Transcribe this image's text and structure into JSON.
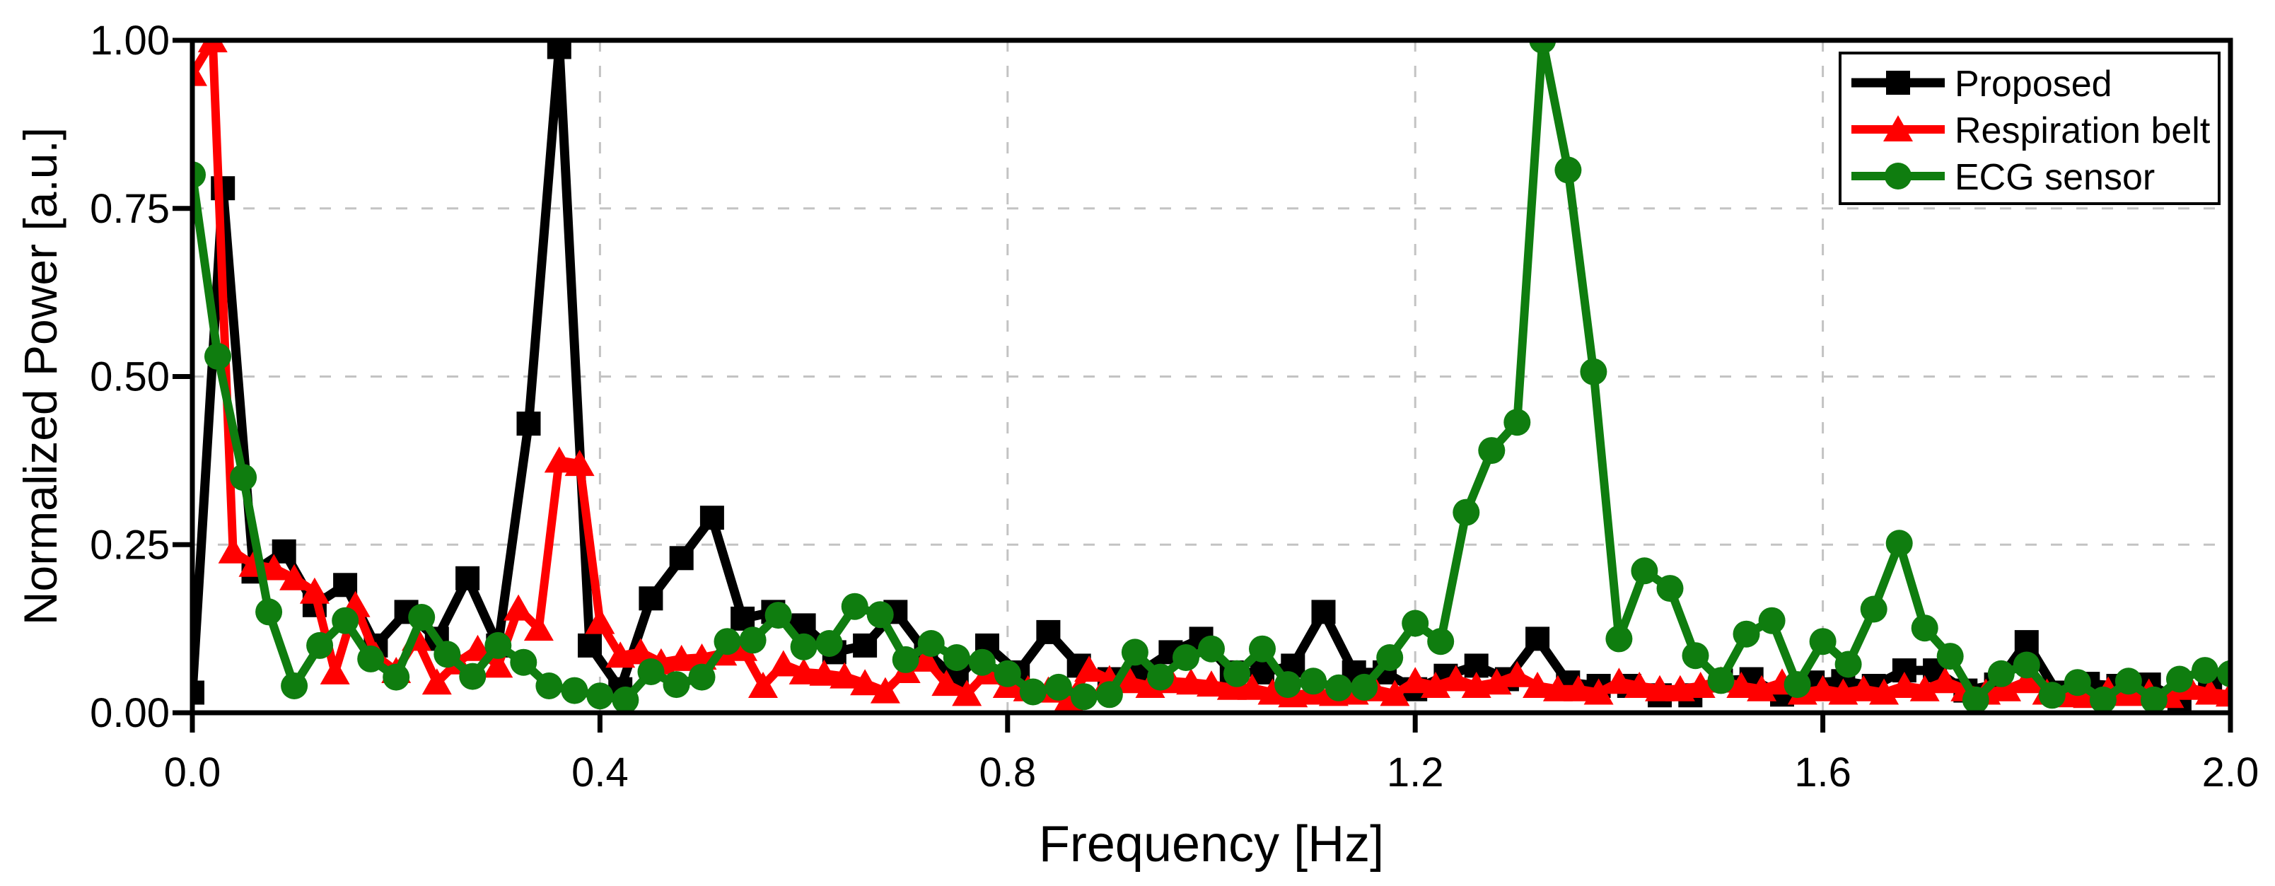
{
  "chart_data": {
    "type": "line",
    "title": "",
    "xlabel": "Frequency [Hz]",
    "ylabel": "Normalized Power [a.u.]",
    "xlim": [
      0.0,
      2.0
    ],
    "ylim": [
      0.0,
      1.0
    ],
    "x_ticks": [
      0.0,
      0.4,
      0.8,
      1.2,
      1.6,
      2.0
    ],
    "x_tick_labels": [
      "0.0",
      "0.4",
      "0.8",
      "1.2",
      "1.6",
      "2.0"
    ],
    "y_ticks": [
      0.0,
      0.25,
      0.5,
      0.75,
      1.0
    ],
    "y_tick_labels": [
      "0.00",
      "0.25",
      "0.50",
      "0.75",
      "1.00"
    ],
    "grid": true,
    "grid_color": "#c3c3c3",
    "axis_color": "#000000",
    "background_color": "#ffffff",
    "legend_position": "top-right",
    "legend": [
      "Proposed",
      "Respiration belt",
      "ECG sensor"
    ],
    "series": [
      {
        "name": "Proposed",
        "color": "#000000",
        "marker": "square",
        "x_start": 0.0,
        "x_step": 0.03,
        "values": [
          0.03,
          0.78,
          0.21,
          0.24,
          0.16,
          0.19,
          0.1,
          0.15,
          0.11,
          0.2,
          0.1,
          0.43,
          0.99,
          0.1,
          0.035,
          0.17,
          0.23,
          0.29,
          0.14,
          0.15,
          0.13,
          0.09,
          0.1,
          0.15,
          0.09,
          0.05,
          0.1,
          0.06,
          0.12,
          0.07,
          0.05,
          0.06,
          0.09,
          0.11,
          0.06,
          0.06,
          0.07,
          0.15,
          0.06,
          0.06,
          0.035,
          0.055,
          0.07,
          0.05,
          0.11,
          0.045,
          0.04,
          0.04,
          0.026,
          0.026,
          0.048,
          0.05,
          0.027,
          0.045,
          0.047,
          0.04,
          0.063,
          0.063,
          0.033,
          0.042,
          0.105,
          0.03,
          0.043,
          0.04,
          0.042,
          0.02,
          0.038
        ]
      },
      {
        "name": "Respiration belt",
        "color": "#ff0000",
        "marker": "triangle",
        "x_start": 0.0,
        "x_step": 0.02,
        "values": [
          0.95,
          1.0,
          0.24,
          0.22,
          0.215,
          0.2,
          0.18,
          0.06,
          0.16,
          0.085,
          0.062,
          0.11,
          0.045,
          0.075,
          0.095,
          0.07,
          0.155,
          0.125,
          0.375,
          0.37,
          0.135,
          0.085,
          0.09,
          0.075,
          0.08,
          0.082,
          0.088,
          0.095,
          0.04,
          0.072,
          0.06,
          0.058,
          0.054,
          0.044,
          0.032,
          0.062,
          0.079,
          0.043,
          0.028,
          0.06,
          0.04,
          0.035,
          0.033,
          0.02,
          0.064,
          0.05,
          0.047,
          0.04,
          0.047,
          0.045,
          0.042,
          0.037,
          0.037,
          0.03,
          0.026,
          0.03,
          0.028,
          0.03,
          0.035,
          0.028,
          0.047,
          0.04,
          0.05,
          0.04,
          0.045,
          0.056,
          0.04,
          0.035,
          0.035,
          0.03,
          0.046,
          0.04,
          0.035,
          0.035,
          0.04,
          0.048,
          0.04,
          0.035,
          0.045,
          0.03,
          0.035,
          0.03,
          0.035,
          0.03,
          0.04,
          0.035,
          0.047,
          0.035,
          0.03,
          0.035,
          0.047,
          0.03,
          0.026,
          0.025,
          0.033,
          0.028,
          0.03,
          0.025,
          0.037,
          0.03,
          0.027
        ]
      },
      {
        "name": "ECG sensor",
        "color": "#0f7d0f",
        "marker": "circle",
        "x_start": 0.0,
        "x_step": 0.025,
        "values": [
          0.8,
          0.53,
          0.35,
          0.15,
          0.04,
          0.1,
          0.137,
          0.08,
          0.053,
          0.142,
          0.087,
          0.054,
          0.1,
          0.075,
          0.04,
          0.033,
          0.025,
          0.019,
          0.061,
          0.042,
          0.053,
          0.106,
          0.108,
          0.145,
          0.098,
          0.103,
          0.158,
          0.146,
          0.079,
          0.103,
          0.082,
          0.075,
          0.058,
          0.031,
          0.038,
          0.024,
          0.027,
          0.09,
          0.053,
          0.082,
          0.095,
          0.058,
          0.095,
          0.042,
          0.047,
          0.037,
          0.038,
          0.082,
          0.133,
          0.106,
          0.298,
          0.39,
          0.432,
          1.0,
          0.807,
          0.507,
          0.11,
          0.211,
          0.185,
          0.085,
          0.048,
          0.117,
          0.137,
          0.042,
          0.106,
          0.072,
          0.154,
          0.252,
          0.126,
          0.084,
          0.019,
          0.058,
          0.071,
          0.026,
          0.045,
          0.019,
          0.047,
          0.019,
          0.05,
          0.063,
          0.058
        ]
      }
    ]
  }
}
